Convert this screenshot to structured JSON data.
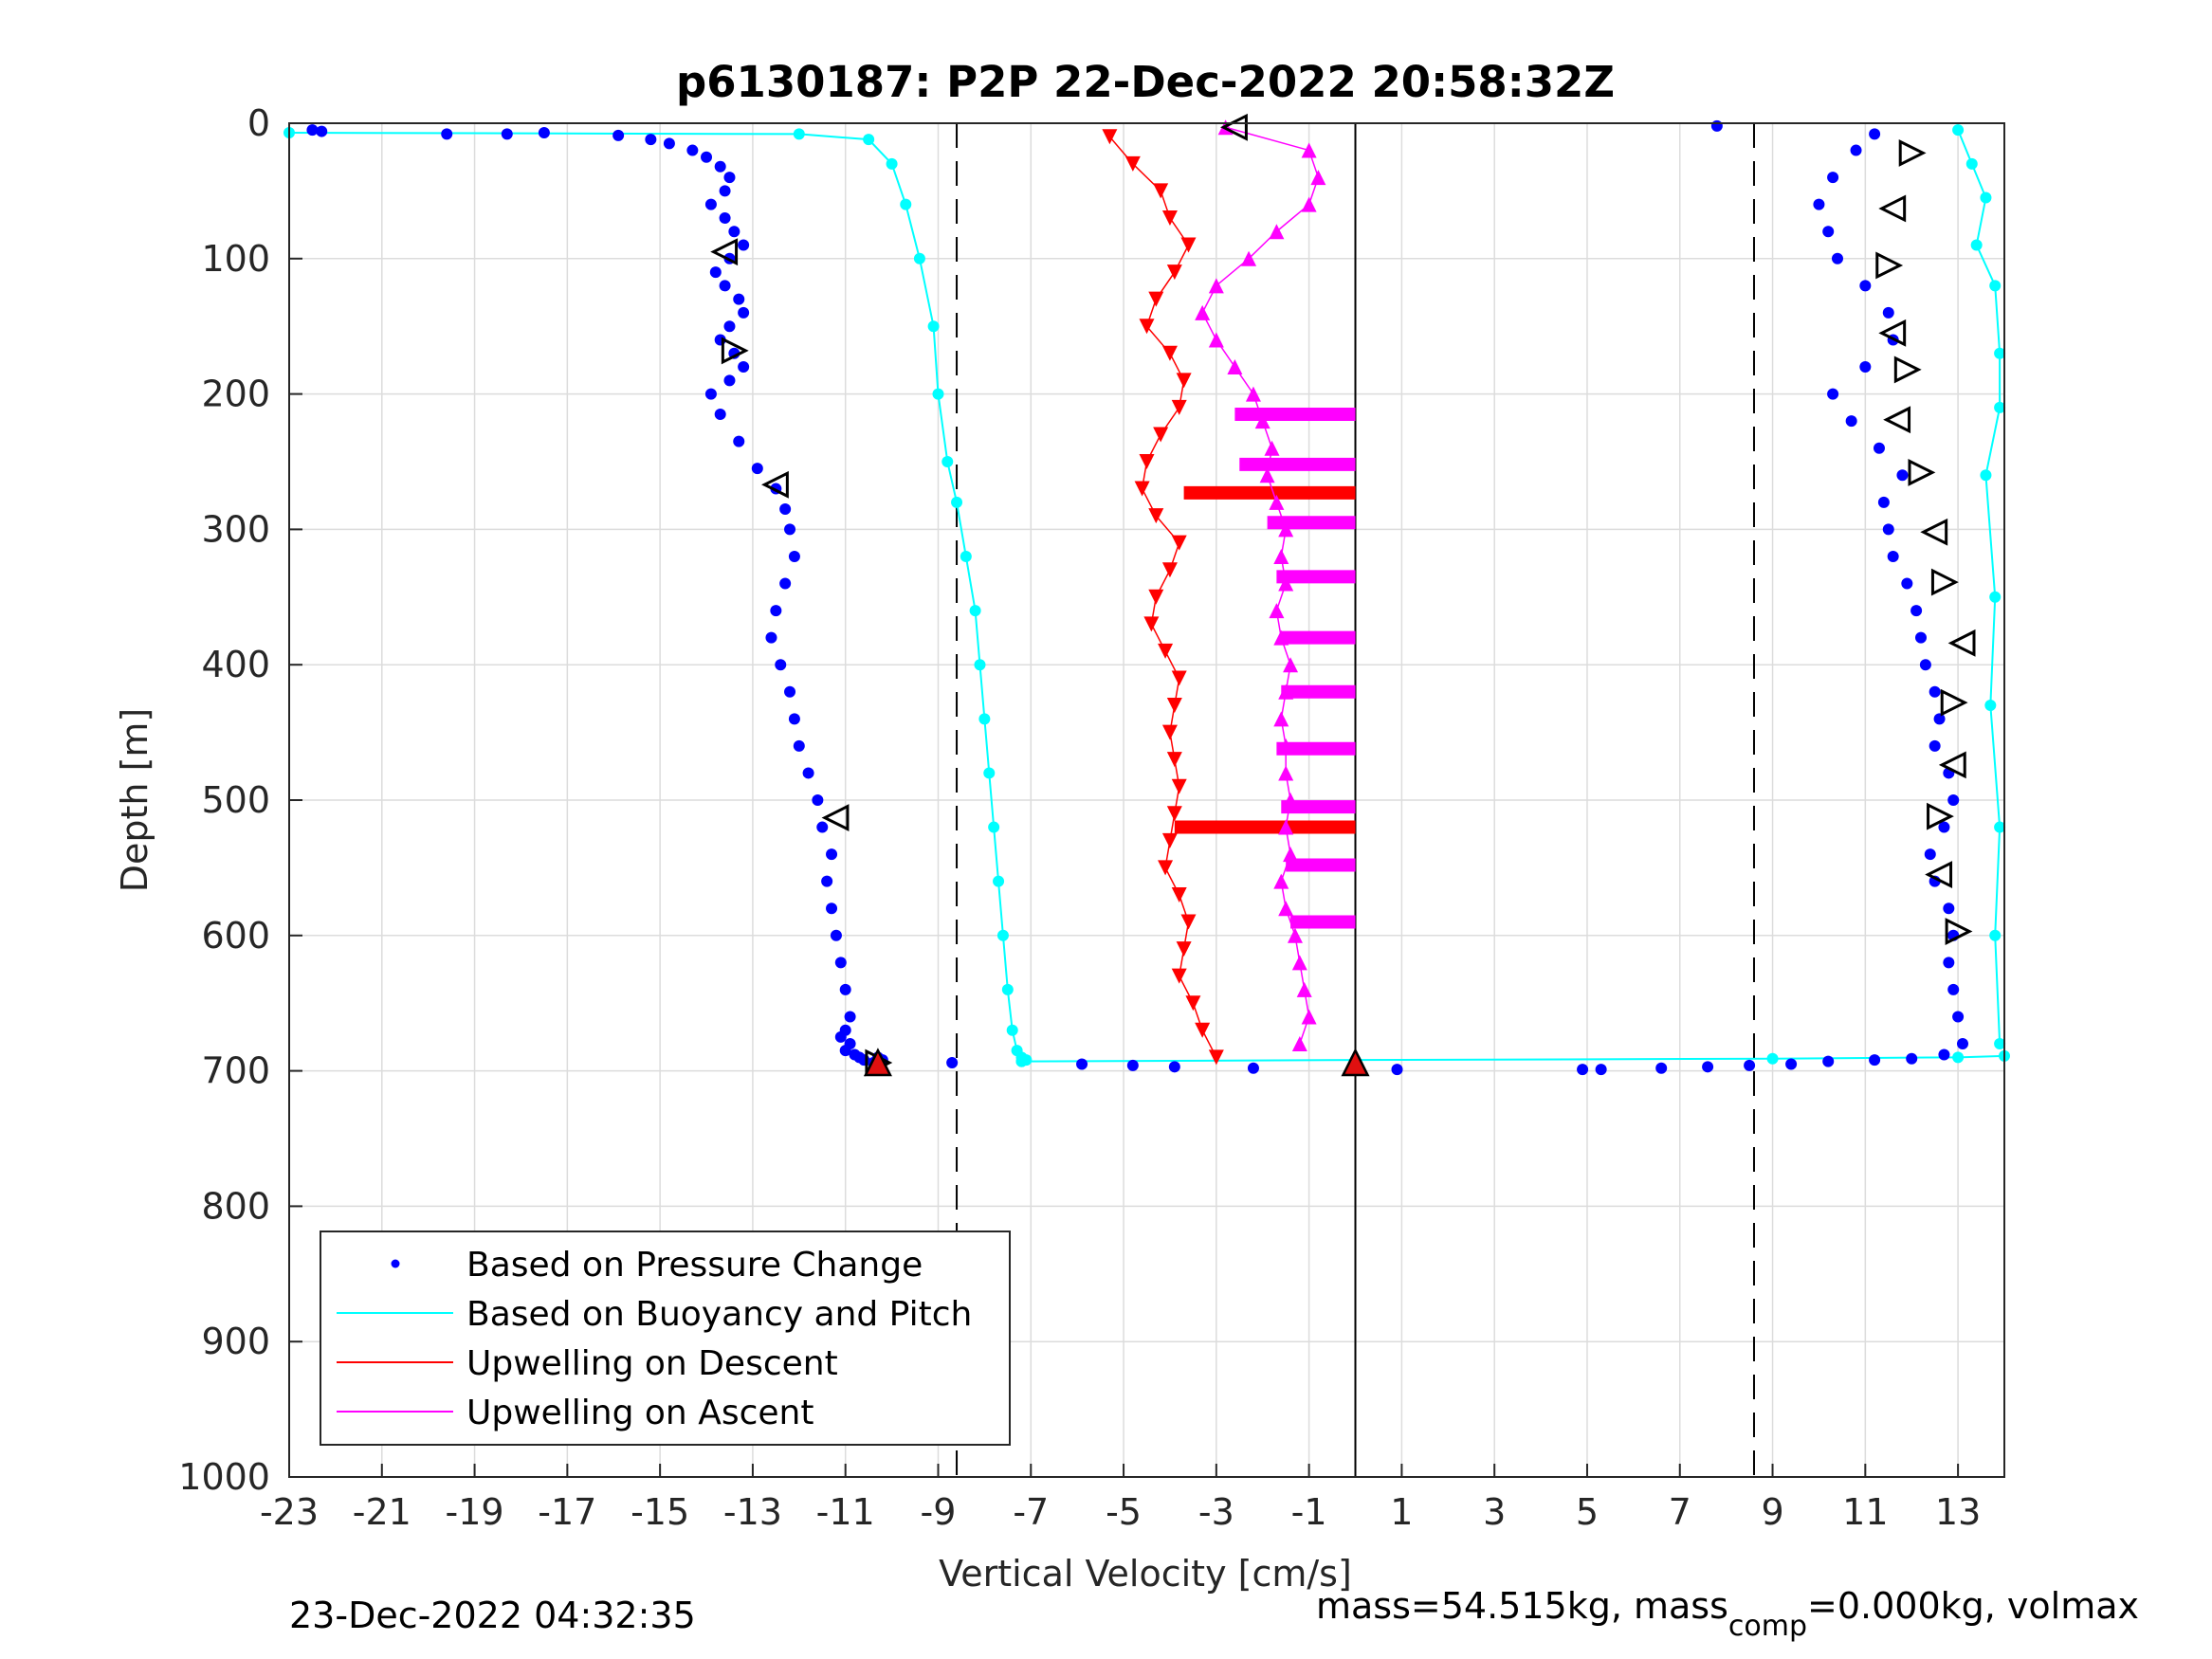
{
  "chart_data": {
    "type": "scatter",
    "title": "p6130187: P2P 22-Dec-2022 20:58:32Z",
    "xlabel": "Vertical Velocity [cm/s]",
    "ylabel": "Depth [m]",
    "xlim": [
      -23,
      14
    ],
    "ylim": [
      0,
      1000
    ],
    "y_reversed": true,
    "grid": true,
    "legend_placement": "bottom-left",
    "xticks": [
      "-23",
      "-21",
      "-19",
      "-17",
      "-15",
      "-13",
      "-11",
      "-9",
      "-7",
      "-5",
      "-3",
      "-1",
      "1",
      "3",
      "5",
      "7",
      "9",
      "11",
      "13"
    ],
    "yticks": [
      "0",
      "100",
      "200",
      "300",
      "400",
      "500",
      "600",
      "700",
      "800",
      "900",
      "1000"
    ],
    "reference_lines": {
      "dashed_x": [
        -8.6,
        8.6
      ],
      "solid_x": [
        0.0
      ]
    },
    "colors": {
      "pressure": "#0000ff",
      "buoyancy": "#00ffff",
      "descent": "#ff0000",
      "ascent": "#ff00ff",
      "axes": "#262626",
      "grid": "#dcdcdc"
    },
    "series": [
      {
        "name": "Based on Pressure Change",
        "marker": "dot",
        "segments": [
          {
            "x": [
              -22.5,
              -22.3,
              -19.6,
              -18.3,
              -17.5,
              -15.9,
              -15.2,
              -14.8,
              -14.3,
              -14.0,
              -13.7,
              -13.5,
              -13.6,
              -13.9,
              -13.6,
              -13.4,
              -13.2,
              -13.5,
              -13.8,
              -13.6,
              -13.3,
              -13.2,
              -13.5,
              -13.7,
              -13.4,
              -13.2,
              -13.5,
              -13.9,
              -13.7,
              -13.3,
              -12.9,
              -12.5,
              -12.3,
              -12.2,
              -12.1,
              -12.3,
              -12.5,
              -12.6,
              -12.4,
              -12.2,
              -12.1,
              -12.0,
              -11.8,
              -11.6,
              -11.5,
              -11.3,
              -11.4,
              -11.3,
              -11.2,
              -11.1,
              -11.0,
              -10.9,
              -11.0,
              -11.1,
              -10.9,
              -11.0,
              -10.8,
              -10.7,
              -10.6,
              -10.4,
              -10.2,
              -10.3
            ],
            "y": [
              5,
              6,
              8,
              8,
              7,
              9,
              12,
              15,
              20,
              25,
              32,
              40,
              50,
              60,
              70,
              80,
              90,
              100,
              110,
              120,
              130,
              140,
              150,
              160,
              170,
              180,
              190,
              200,
              215,
              235,
              255,
              270,
              285,
              300,
              320,
              340,
              360,
              380,
              400,
              420,
              440,
              460,
              480,
              500,
              520,
              540,
              560,
              580,
              600,
              620,
              640,
              660,
              670,
              675,
              680,
              685,
              688,
              690,
              692,
              694,
              692,
              690
            ]
          },
          {
            "x": [
              -8.7,
              -5.9,
              -4.8,
              -3.9,
              -2.2,
              0.9,
              4.9,
              5.3,
              6.6,
              7.6,
              8.5,
              9.4,
              10.2,
              11.2,
              12.0,
              12.7,
              13.1,
              13.0,
              12.9,
              12.8,
              12.9,
              12.8,
              12.5,
              12.4,
              12.7,
              12.9,
              12.8,
              12.5,
              12.6,
              12.5,
              12.3,
              12.2,
              12.1,
              11.9,
              11.6,
              11.5,
              11.4,
              11.8,
              11.3,
              10.7,
              10.3,
              11.0,
              11.6,
              11.5,
              11.0,
              10.4,
              10.2,
              10.0,
              10.3,
              10.8,
              11.2,
              7.8
            ],
            "y": [
              694,
              695,
              696,
              697,
              698,
              699,
              699,
              699,
              698,
              697,
              696,
              695,
              693,
              692,
              691,
              688,
              680,
              660,
              640,
              620,
              600,
              580,
              560,
              540,
              520,
              500,
              480,
              460,
              440,
              420,
              400,
              380,
              360,
              340,
              320,
              300,
              280,
              260,
              240,
              220,
              200,
              180,
              160,
              140,
              120,
              100,
              80,
              60,
              40,
              20,
              8,
              2
            ]
          }
        ]
      },
      {
        "name": "Based on Buoyancy and Pitch",
        "marker": "dot",
        "with_line": true,
        "segments": [
          {
            "x": [
              -23,
              -12,
              -10.5,
              -10.0,
              -9.7,
              -9.4,
              -9.1,
              -9.0,
              -8.8,
              -8.6,
              -8.4,
              -8.2,
              -8.1,
              -8.0,
              -7.9,
              -7.8,
              -7.7,
              -7.6,
              -7.5,
              -7.4,
              -7.3,
              -7.2,
              -7.1,
              -7.2
            ],
            "y": [
              7,
              8,
              12,
              30,
              60,
              100,
              150,
              200,
              250,
              280,
              320,
              360,
              400,
              440,
              480,
              520,
              560,
              600,
              640,
              670,
              685,
              690,
              692,
              693
            ]
          },
          {
            "x": [
              -7.2,
              0,
              9,
              13,
              14
            ],
            "y": [
              693,
              692,
              691,
              690,
              689
            ]
          },
          {
            "x": [
              13.0,
              13.3,
              13.6,
              13.4,
              13.8,
              13.9,
              13.9,
              13.6,
              13.8,
              13.7,
              13.9,
              13.8,
              13.9
            ],
            "y": [
              5,
              30,
              55,
              90,
              120,
              170,
              210,
              260,
              350,
              430,
              520,
              600,
              680
            ]
          }
        ]
      },
      {
        "name": "Upwelling on Descent",
        "marker": "triangle-down",
        "x": [
          -5.3,
          -4.8,
          -4.2,
          -4.0,
          -3.6,
          -3.9,
          -4.3,
          -4.5,
          -4.0,
          -3.7,
          -3.8,
          -4.2,
          -4.5,
          -4.6,
          -4.3,
          -3.8,
          -4.0,
          -4.3,
          -4.4,
          -4.1,
          -3.8,
          -3.9,
          -4.0,
          -3.9,
          -3.8,
          -3.9,
          -4.0,
          -4.1,
          -3.8,
          -3.6,
          -3.7,
          -3.8,
          -3.5,
          -3.3,
          -3.0
        ],
        "y": [
          10,
          30,
          50,
          70,
          90,
          110,
          130,
          150,
          170,
          190,
          210,
          230,
          250,
          270,
          290,
          310,
          330,
          350,
          370,
          390,
          410,
          430,
          450,
          470,
          490,
          510,
          530,
          550,
          570,
          590,
          610,
          630,
          650,
          670,
          690
        ],
        "horizontal_bars": [
          {
            "depth": 273,
            "x_from": -3.7,
            "x_to": 0.0
          },
          {
            "depth": 520,
            "x_from": -3.9,
            "x_to": 0.0
          }
        ]
      },
      {
        "name": "Upwelling on Ascent",
        "marker": "triangle-up",
        "x": [
          -2.8,
          -1.0,
          -0.8,
          -1.0,
          -1.7,
          -2.3,
          -3.0,
          -3.3,
          -3.0,
          -2.6,
          -2.2,
          -2.0,
          -1.8,
          -1.9,
          -1.7,
          -1.5,
          -1.6,
          -1.5,
          -1.7,
          -1.6,
          -1.4,
          -1.5,
          -1.6,
          -1.5,
          -1.5,
          -1.4,
          -1.5,
          -1.4,
          -1.6,
          -1.5,
          -1.3,
          -1.2,
          -1.1,
          -1.0,
          -1.2
        ],
        "y": [
          3,
          20,
          40,
          60,
          80,
          100,
          120,
          140,
          160,
          180,
          200,
          220,
          240,
          260,
          280,
          300,
          320,
          340,
          360,
          380,
          400,
          420,
          440,
          460,
          480,
          500,
          520,
          540,
          560,
          580,
          600,
          620,
          640,
          660,
          680
        ],
        "horizontal_bars": [
          {
            "depth": 215,
            "x_from": -2.6,
            "x_to": 0.0
          },
          {
            "depth": 252,
            "x_from": -2.5,
            "x_to": 0.0
          },
          {
            "depth": 295,
            "x_from": -1.9,
            "x_to": 0.0
          },
          {
            "depth": 335,
            "x_from": -1.7,
            "x_to": 0.0
          },
          {
            "depth": 380,
            "x_from": -1.6,
            "x_to": 0.0
          },
          {
            "depth": 420,
            "x_from": -1.6,
            "x_to": 0.0
          },
          {
            "depth": 462,
            "x_from": -1.7,
            "x_to": 0.0
          },
          {
            "depth": 505,
            "x_from": -1.6,
            "x_to": 0.0
          },
          {
            "depth": 548,
            "x_from": -1.5,
            "x_to": 0.0
          },
          {
            "depth": 590,
            "x_from": -1.4,
            "x_to": 0.0
          }
        ]
      }
    ],
    "markers": {
      "open_triangles": [
        {
          "x": -2.6,
          "y": 3,
          "dir": "left"
        },
        {
          "x": -13.6,
          "y": 95,
          "dir": "left"
        },
        {
          "x": -13.4,
          "y": 168,
          "dir": "right"
        },
        {
          "x": -12.5,
          "y": 267,
          "dir": "left"
        },
        {
          "x": -11.2,
          "y": 513,
          "dir": "left"
        },
        {
          "x": -10.3,
          "y": 694,
          "dir": "right"
        },
        {
          "x": 12.0,
          "y": 22,
          "dir": "right"
        },
        {
          "x": 11.6,
          "y": 63,
          "dir": "left"
        },
        {
          "x": 11.5,
          "y": 105,
          "dir": "right"
        },
        {
          "x": 11.6,
          "y": 155,
          "dir": "left"
        },
        {
          "x": 11.9,
          "y": 182,
          "dir": "right"
        },
        {
          "x": 11.7,
          "y": 219,
          "dir": "left"
        },
        {
          "x": 12.2,
          "y": 258,
          "dir": "right"
        },
        {
          "x": 12.5,
          "y": 302,
          "dir": "left"
        },
        {
          "x": 12.7,
          "y": 339,
          "dir": "right"
        },
        {
          "x": 13.1,
          "y": 384,
          "dir": "left"
        },
        {
          "x": 12.9,
          "y": 428,
          "dir": "right"
        },
        {
          "x": 12.9,
          "y": 474,
          "dir": "left"
        },
        {
          "x": 12.6,
          "y": 512,
          "dir": "right"
        },
        {
          "x": 12.6,
          "y": 555,
          "dir": "left"
        },
        {
          "x": 13.0,
          "y": 597,
          "dir": "right"
        }
      ],
      "filled_triangles": [
        {
          "x": 0.0,
          "y": 694,
          "color": "#e01010"
        },
        {
          "x": -10.3,
          "y": 694,
          "color": "#e01010"
        }
      ]
    }
  },
  "footer": {
    "timestamp": "23-Dec-2022 04:32:35",
    "mass_text": "mass=54.515kg, mass",
    "mass_sub": "comp",
    "mass_rest": "=0.000kg, volmax"
  }
}
